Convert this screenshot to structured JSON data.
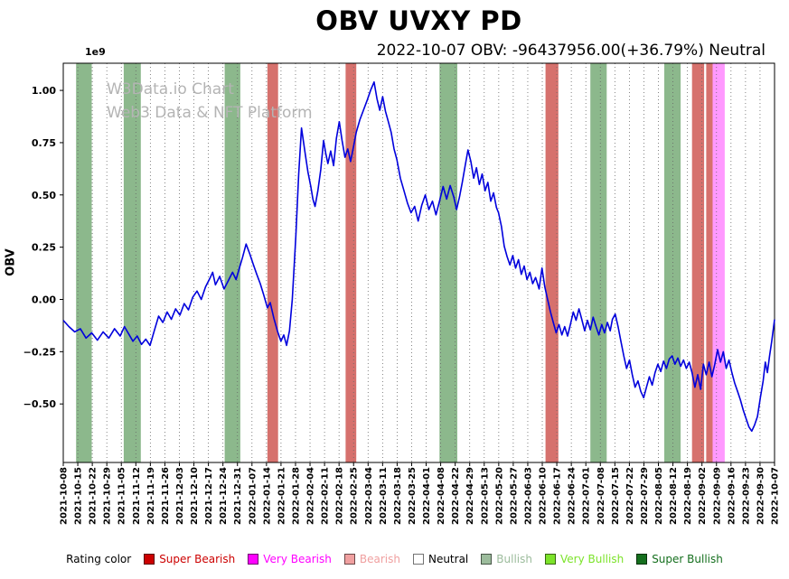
{
  "chart": {
    "title": "OBV UVXY PD",
    "subtitle": "2022-10-07 OBV: -96437956.00(+36.79%) Neutral",
    "watermark_line1": "W3Data.io Chart",
    "watermark_line2": "Web3 Data & NFT Platform",
    "y_axis_label": "OBV",
    "offset_text": "1e9"
  },
  "legend": {
    "title": "Rating color",
    "items": [
      {
        "label": "Super Bearish",
        "swatch": "#cc0000",
        "text": "#cc0000"
      },
      {
        "label": "Very Bearish",
        "swatch": "#ff00ff",
        "text": "#ff00ff"
      },
      {
        "label": "Bearish",
        "swatch": "#f0a0a0",
        "text": "#f0a0a0"
      },
      {
        "label": "Neutral",
        "swatch": "#ffffff",
        "text": "#000000"
      },
      {
        "label": "Bullish",
        "swatch": "#9cbc9c",
        "text": "#9cbc9c"
      },
      {
        "label": "Very Bullish",
        "swatch": "#7ce32a",
        "text": "#7ce32a"
      },
      {
        "label": "Super Bullish",
        "swatch": "#156f1e",
        "text": "#156f1e"
      }
    ]
  },
  "band_colors": {
    "Bullish": "rgba(45,125,45,0.55)",
    "Bearish": "rgba(200,65,60,0.75)",
    "Very Bearish": "rgba(255,70,255,0.55)"
  },
  "chart_data": {
    "type": "line",
    "title": "OBV UVXY PD",
    "subtitle": "2022-10-07 OBV: -96437956.00(+36.79%) Neutral",
    "ylabel": "OBV",
    "y_multiplier": "1e9",
    "ylim": [
      -0.78,
      1.13
    ],
    "grid": "vertical-dotted",
    "legend_position": "bottom",
    "last_point": {
      "date": "2022-10-07",
      "obv": -96437956.0,
      "change_pct": 36.79,
      "rating": "Neutral"
    },
    "y_ticks": [
      {
        "label": "1.00",
        "value": 1.0
      },
      {
        "label": "0.75",
        "value": 0.75
      },
      {
        "label": "0.50",
        "value": 0.5
      },
      {
        "label": "0.25",
        "value": 0.25
      },
      {
        "label": "0.00",
        "value": 0.0
      },
      {
        "label": "−0.25",
        "value": -0.25
      },
      {
        "label": "−0.50",
        "value": -0.5
      }
    ],
    "x_tick_labels": [
      "2021-10-08",
      "2021-10-15",
      "2021-10-22",
      "2021-10-29",
      "2021-11-05",
      "2021-11-12",
      "2021-11-19",
      "2021-11-26",
      "2021-12-03",
      "2021-12-10",
      "2021-12-17",
      "2021-12-24",
      "2021-12-31",
      "2022-01-07",
      "2022-01-14",
      "2022-01-21",
      "2022-01-28",
      "2022-02-04",
      "2022-02-11",
      "2022-02-18",
      "2022-02-25",
      "2022-03-04",
      "2022-03-11",
      "2022-03-18",
      "2022-03-25",
      "2022-04-01",
      "2022-04-08",
      "2022-04-22",
      "2022-04-29",
      "2022-05-13",
      "2022-05-20",
      "2022-05-27",
      "2022-06-03",
      "2022-06-10",
      "2022-06-17",
      "2022-06-24",
      "2022-07-01",
      "2022-07-08",
      "2022-07-15",
      "2022-07-22",
      "2022-07-29",
      "2022-08-05",
      "2022-08-12",
      "2022-08-19",
      "2022-09-02",
      "2022-09-09",
      "2022-09-16",
      "2022-09-23",
      "2022-09-30",
      "2022-10-07"
    ],
    "bands": [
      {
        "start": 0.018,
        "end": 0.04,
        "rating": "Bullish"
      },
      {
        "start": 0.085,
        "end": 0.109,
        "rating": "Bullish"
      },
      {
        "start": 0.227,
        "end": 0.249,
        "rating": "Bullish"
      },
      {
        "start": 0.287,
        "end": 0.302,
        "rating": "Bearish"
      },
      {
        "start": 0.397,
        "end": 0.412,
        "rating": "Bearish"
      },
      {
        "start": 0.529,
        "end": 0.554,
        "rating": "Bullish"
      },
      {
        "start": 0.678,
        "end": 0.696,
        "rating": "Bearish"
      },
      {
        "start": 0.741,
        "end": 0.764,
        "rating": "Bullish"
      },
      {
        "start": 0.845,
        "end": 0.868,
        "rating": "Bullish"
      },
      {
        "start": 0.884,
        "end": 0.901,
        "rating": "Bearish"
      },
      {
        "start": 0.904,
        "end": 0.913,
        "rating": "Bearish"
      },
      {
        "start": 0.913,
        "end": 0.93,
        "rating": "Very Bearish"
      }
    ],
    "series": [
      {
        "name": "OBV (1e9)",
        "color": "#0000dd",
        "points": [
          [
            0.0,
            -0.1
          ],
          [
            0.008,
            -0.13
          ],
          [
            0.016,
            -0.155
          ],
          [
            0.024,
            -0.14
          ],
          [
            0.032,
            -0.185
          ],
          [
            0.04,
            -0.16
          ],
          [
            0.048,
            -0.195
          ],
          [
            0.056,
            -0.155
          ],
          [
            0.064,
            -0.185
          ],
          [
            0.072,
            -0.14
          ],
          [
            0.08,
            -0.175
          ],
          [
            0.086,
            -0.13
          ],
          [
            0.092,
            -0.165
          ],
          [
            0.098,
            -0.2
          ],
          [
            0.104,
            -0.175
          ],
          [
            0.11,
            -0.215
          ],
          [
            0.116,
            -0.19
          ],
          [
            0.122,
            -0.22
          ],
          [
            0.128,
            -0.15
          ],
          [
            0.134,
            -0.08
          ],
          [
            0.14,
            -0.11
          ],
          [
            0.146,
            -0.06
          ],
          [
            0.152,
            -0.095
          ],
          [
            0.158,
            -0.045
          ],
          [
            0.164,
            -0.075
          ],
          [
            0.17,
            -0.02
          ],
          [
            0.176,
            -0.05
          ],
          [
            0.182,
            0.01
          ],
          [
            0.188,
            0.04
          ],
          [
            0.194,
            0.0
          ],
          [
            0.2,
            0.06
          ],
          [
            0.206,
            0.1
          ],
          [
            0.21,
            0.13
          ],
          [
            0.214,
            0.07
          ],
          [
            0.22,
            0.11
          ],
          [
            0.226,
            0.05
          ],
          [
            0.232,
            0.09
          ],
          [
            0.238,
            0.13
          ],
          [
            0.243,
            0.095
          ],
          [
            0.248,
            0.155
          ],
          [
            0.252,
            0.2
          ],
          [
            0.257,
            0.265
          ],
          [
            0.262,
            0.22
          ],
          [
            0.267,
            0.17
          ],
          [
            0.272,
            0.12
          ],
          [
            0.277,
            0.075
          ],
          [
            0.282,
            0.02
          ],
          [
            0.287,
            -0.04
          ],
          [
            0.291,
            -0.015
          ],
          [
            0.296,
            -0.09
          ],
          [
            0.301,
            -0.15
          ],
          [
            0.306,
            -0.2
          ],
          [
            0.31,
            -0.17
          ],
          [
            0.314,
            -0.22
          ],
          [
            0.318,
            -0.15
          ],
          [
            0.322,
            0.0
          ],
          [
            0.327,
            0.3
          ],
          [
            0.331,
            0.6
          ],
          [
            0.335,
            0.82
          ],
          [
            0.34,
            0.7
          ],
          [
            0.344,
            0.61
          ],
          [
            0.348,
            0.54
          ],
          [
            0.351,
            0.48
          ],
          [
            0.354,
            0.445
          ],
          [
            0.358,
            0.52
          ],
          [
            0.362,
            0.62
          ],
          [
            0.366,
            0.76
          ],
          [
            0.369,
            0.7
          ],
          [
            0.372,
            0.65
          ],
          [
            0.376,
            0.71
          ],
          [
            0.38,
            0.64
          ],
          [
            0.384,
            0.77
          ],
          [
            0.388,
            0.85
          ],
          [
            0.392,
            0.76
          ],
          [
            0.396,
            0.68
          ],
          [
            0.4,
            0.72
          ],
          [
            0.404,
            0.66
          ],
          [
            0.408,
            0.73
          ],
          [
            0.412,
            0.8
          ],
          [
            0.417,
            0.86
          ],
          [
            0.422,
            0.905
          ],
          [
            0.427,
            0.95
          ],
          [
            0.432,
            1.0
          ],
          [
            0.437,
            1.04
          ],
          [
            0.441,
            0.96
          ],
          [
            0.445,
            0.905
          ],
          [
            0.449,
            0.97
          ],
          [
            0.453,
            0.9
          ],
          [
            0.457,
            0.85
          ],
          [
            0.461,
            0.8
          ],
          [
            0.465,
            0.72
          ],
          [
            0.469,
            0.67
          ],
          [
            0.474,
            0.58
          ],
          [
            0.479,
            0.52
          ],
          [
            0.484,
            0.46
          ],
          [
            0.489,
            0.415
          ],
          [
            0.494,
            0.445
          ],
          [
            0.499,
            0.375
          ],
          [
            0.504,
            0.45
          ],
          [
            0.509,
            0.5
          ],
          [
            0.514,
            0.43
          ],
          [
            0.519,
            0.47
          ],
          [
            0.524,
            0.405
          ],
          [
            0.529,
            0.47
          ],
          [
            0.534,
            0.54
          ],
          [
            0.539,
            0.48
          ],
          [
            0.544,
            0.545
          ],
          [
            0.549,
            0.49
          ],
          [
            0.553,
            0.43
          ],
          [
            0.557,
            0.49
          ],
          [
            0.561,
            0.56
          ],
          [
            0.565,
            0.64
          ],
          [
            0.569,
            0.715
          ],
          [
            0.573,
            0.66
          ],
          [
            0.577,
            0.58
          ],
          [
            0.581,
            0.63
          ],
          [
            0.585,
            0.55
          ],
          [
            0.589,
            0.6
          ],
          [
            0.593,
            0.52
          ],
          [
            0.597,
            0.56
          ],
          [
            0.601,
            0.47
          ],
          [
            0.605,
            0.51
          ],
          [
            0.609,
            0.44
          ],
          [
            0.612,
            0.415
          ],
          [
            0.616,
            0.35
          ],
          [
            0.62,
            0.255
          ],
          [
            0.624,
            0.205
          ],
          [
            0.628,
            0.165
          ],
          [
            0.632,
            0.21
          ],
          [
            0.636,
            0.15
          ],
          [
            0.64,
            0.19
          ],
          [
            0.644,
            0.12
          ],
          [
            0.648,
            0.16
          ],
          [
            0.652,
            0.095
          ],
          [
            0.656,
            0.13
          ],
          [
            0.66,
            0.075
          ],
          [
            0.664,
            0.105
          ],
          [
            0.669,
            0.05
          ],
          [
            0.673,
            0.15
          ],
          [
            0.677,
            0.06
          ],
          [
            0.681,
            0.0
          ],
          [
            0.685,
            -0.06
          ],
          [
            0.689,
            -0.11
          ],
          [
            0.693,
            -0.16
          ],
          [
            0.697,
            -0.12
          ],
          [
            0.701,
            -0.17
          ],
          [
            0.705,
            -0.13
          ],
          [
            0.709,
            -0.175
          ],
          [
            0.713,
            -0.12
          ],
          [
            0.717,
            -0.06
          ],
          [
            0.721,
            -0.1
          ],
          [
            0.725,
            -0.045
          ],
          [
            0.729,
            -0.095
          ],
          [
            0.733,
            -0.15
          ],
          [
            0.737,
            -0.1
          ],
          [
            0.741,
            -0.145
          ],
          [
            0.745,
            -0.085
          ],
          [
            0.749,
            -0.13
          ],
          [
            0.753,
            -0.17
          ],
          [
            0.757,
            -0.12
          ],
          [
            0.761,
            -0.16
          ],
          [
            0.765,
            -0.11
          ],
          [
            0.769,
            -0.15
          ],
          [
            0.772,
            -0.095
          ],
          [
            0.776,
            -0.07
          ],
          [
            0.78,
            -0.13
          ],
          [
            0.784,
            -0.2
          ],
          [
            0.788,
            -0.27
          ],
          [
            0.792,
            -0.33
          ],
          [
            0.796,
            -0.29
          ],
          [
            0.8,
            -0.36
          ],
          [
            0.804,
            -0.42
          ],
          [
            0.808,
            -0.39
          ],
          [
            0.812,
            -0.44
          ],
          [
            0.816,
            -0.47
          ],
          [
            0.82,
            -0.42
          ],
          [
            0.824,
            -0.37
          ],
          [
            0.828,
            -0.41
          ],
          [
            0.832,
            -0.35
          ],
          [
            0.836,
            -0.31
          ],
          [
            0.84,
            -0.345
          ],
          [
            0.844,
            -0.295
          ],
          [
            0.848,
            -0.33
          ],
          [
            0.852,
            -0.285
          ],
          [
            0.856,
            -0.27
          ],
          [
            0.86,
            -0.31
          ],
          [
            0.864,
            -0.28
          ],
          [
            0.868,
            -0.32
          ],
          [
            0.872,
            -0.29
          ],
          [
            0.876,
            -0.33
          ],
          [
            0.88,
            -0.3
          ],
          [
            0.884,
            -0.35
          ],
          [
            0.888,
            -0.42
          ],
          [
            0.892,
            -0.36
          ],
          [
            0.896,
            -0.43
          ],
          [
            0.9,
            -0.31
          ],
          [
            0.904,
            -0.36
          ],
          [
            0.908,
            -0.3
          ],
          [
            0.912,
            -0.37
          ],
          [
            0.916,
            -0.31
          ],
          [
            0.92,
            -0.24
          ],
          [
            0.924,
            -0.3
          ],
          [
            0.928,
            -0.25
          ],
          [
            0.932,
            -0.33
          ],
          [
            0.936,
            -0.29
          ],
          [
            0.94,
            -0.35
          ],
          [
            0.944,
            -0.4
          ],
          [
            0.948,
            -0.44
          ],
          [
            0.952,
            -0.48
          ],
          [
            0.956,
            -0.53
          ],
          [
            0.96,
            -0.57
          ],
          [
            0.964,
            -0.61
          ],
          [
            0.968,
            -0.63
          ],
          [
            0.972,
            -0.6
          ],
          [
            0.976,
            -0.56
          ],
          [
            0.98,
            -0.47
          ],
          [
            0.984,
            -0.39
          ],
          [
            0.987,
            -0.3
          ],
          [
            0.99,
            -0.35
          ],
          [
            0.993,
            -0.27
          ],
          [
            0.996,
            -0.2
          ],
          [
            1.0,
            -0.096
          ]
        ]
      }
    ]
  }
}
